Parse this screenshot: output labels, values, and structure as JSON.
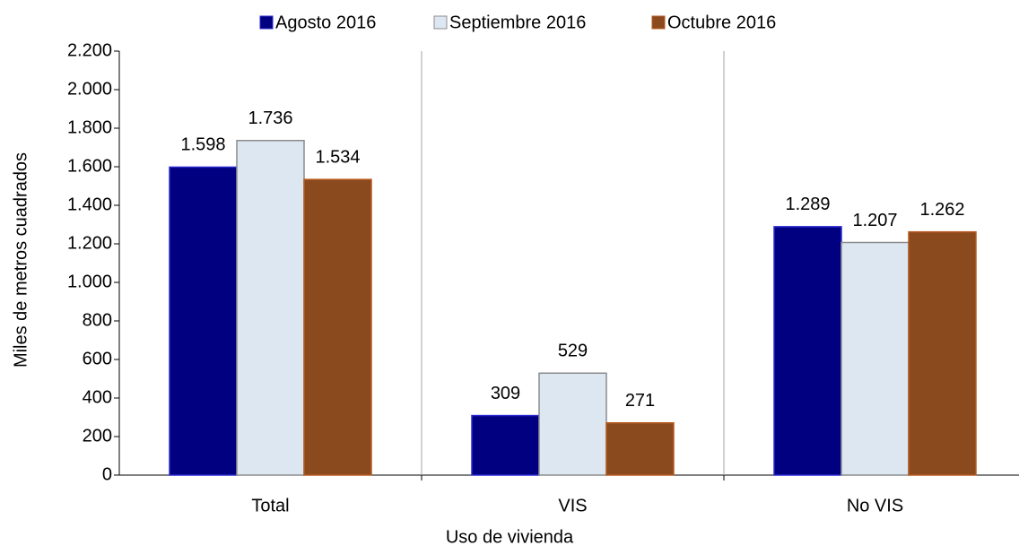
{
  "chart_data": {
    "type": "bar",
    "x_label": "Uso de vivienda",
    "y_label": "Miles de metros cuadrados",
    "categories": [
      "Total",
      "VIS",
      "No VIS"
    ],
    "series": [
      {
        "name": "Agosto 2016",
        "color": "#000080",
        "values": [
          1598,
          309,
          1289
        ],
        "value_labels": [
          "1.598",
          "309",
          "1.289"
        ]
      },
      {
        "name": "Septiembre 2016",
        "color": "#dde7f2",
        "values": [
          1736,
          529,
          1207
        ],
        "value_labels": [
          "1.736",
          "529",
          "1.207"
        ]
      },
      {
        "name": "Octubre 2016",
        "color": "#8a4a1e",
        "values": [
          1534,
          271,
          1262
        ],
        "value_labels": [
          "1.534",
          "271",
          "1.262"
        ]
      }
    ],
    "ylim": [
      0,
      2200
    ],
    "yticks": [
      0,
      200,
      400,
      600,
      800,
      {
        "value": 1000,
        "label": "1.000"
      },
      {
        "value": 1200,
        "label": "1.200"
      },
      {
        "value": 1400,
        "label": "1.400"
      },
      {
        "value": 1600,
        "label": "1.600"
      },
      {
        "value": 1800,
        "label": "1.800"
      },
      {
        "value": 2000,
        "label": "2.000"
      },
      {
        "value": 2200,
        "label": "2.200"
      }
    ],
    "legend": "top",
    "grid": false
  }
}
